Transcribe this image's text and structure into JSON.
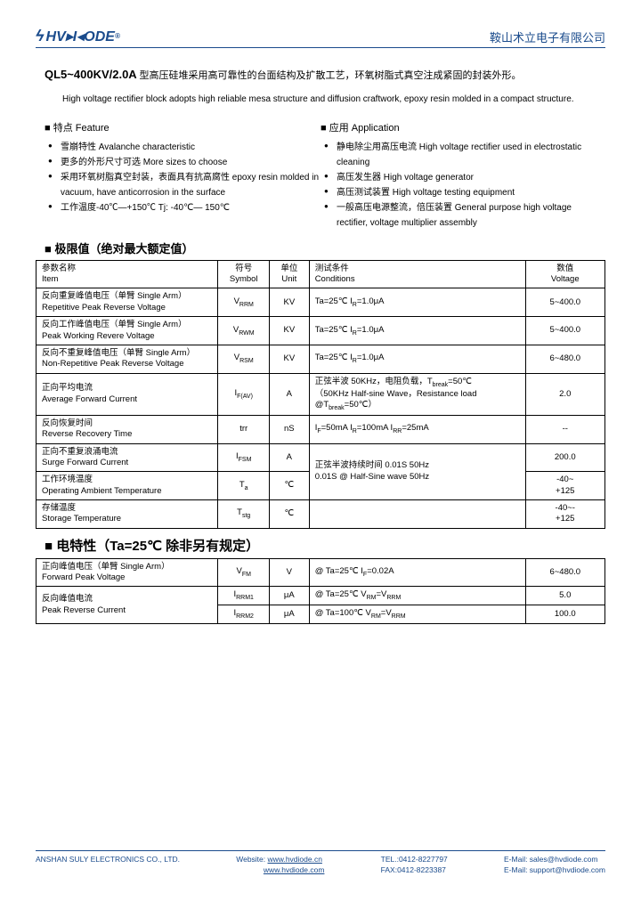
{
  "header": {
    "logo_text": "HV▸I◂ODE",
    "logo_sup": "®",
    "company_cn": "鞍山术立电子有限公司"
  },
  "title": {
    "part_no": "QL5~400KV/2.0A",
    "desc_cn": "型高压硅堆采用高可靠性的台面结构及扩散工艺，环氧树脂式真空注成紧固的封装外形。",
    "desc_en": "High voltage rectifier block adopts high reliable mesa structure and diffusion craftwork, epoxy resin molded in a compact structure."
  },
  "features": {
    "title": "■ 特点 Feature",
    "items": [
      "雪崩特性  Avalanche characteristic",
      "更多的外形尺寸可选  More sizes to choose",
      "采用环氧树脂真空封装，表面具有抗高腐性 epoxy resin molded in vacuum, have anticorrosion in the surface",
      "工作温度-40℃—+150℃   Tj: -40℃— 150℃"
    ]
  },
  "applications": {
    "title": "■ 应用 Application",
    "items": [
      "静电除尘用高压电流 High voltage rectifier used in electrostatic cleaning",
      "高压发生器   High voltage generator",
      "高压测试装置 High voltage testing equipment",
      "一般高压电源整流，倍压装置 General purpose high voltage rectifier, voltage multiplier assembly"
    ]
  },
  "limits": {
    "title": "■  极限值（绝对最大额定值）",
    "headers": {
      "item": "参数名称\nItem",
      "symbol": "符号\nSymbol",
      "unit": "单位\nUnit",
      "conditions": "测试条件\nConditions",
      "value": "数值\nVoltage"
    },
    "rows": [
      {
        "item": "反向重复峰值电压（单臂 Single Arm）\nRepetitive Peak Reverse Voltage",
        "sym": "V",
        "sub": "RRM",
        "unit": "KV",
        "cond": "Ta=25℃      I",
        "csub": "R",
        "cond2": "=1.0μA",
        "val": "5~400.0"
      },
      {
        "item": "反向工作峰值电压（单臂 Single Arm）\nPeak Working Revere Voltage",
        "sym": "V",
        "sub": "RWM",
        "unit": "KV",
        "cond": "Ta=25℃      I",
        "csub": "R",
        "cond2": "=1.0μA",
        "val": "5~400.0"
      },
      {
        "item": "反向不重复峰值电压（单臂 Single Arm）\nNon-Repetitive Peak Reverse Voltage",
        "sym": "V",
        "sub": "RSM",
        "unit": "KV",
        "cond": "Ta=25℃      I",
        "csub": "R",
        "cond2": "=1.0μA",
        "val": "6~480.0"
      },
      {
        "item": "正向平均电流\nAverage Forward Current",
        "sym": "I",
        "sub": "F(AV)",
        "unit": "A",
        "cond": "正弦半波 50KHz，电阻负载，T",
        "csub": "break",
        "cond2": "=50℃\n（50KHz Half-sine Wave，Resistance load @T",
        "csub2": "break",
        "cond3": "=50℃）",
        "val": "2.0"
      },
      {
        "item": "反向恢复时间\nReverse Recovery Time",
        "sym": "trr",
        "sub": "",
        "unit": "nS",
        "cond": "I",
        "csub": "F",
        "cond2": "=50mA   I",
        "csub2": "R",
        "cond3": "=100mA   I",
        "csub3": "RR",
        "cond4": "=25mA",
        "val": "--"
      },
      {
        "item": "正向不重复浪涌电流\nSurge Forward Current",
        "sym": "I",
        "sub": "FSM",
        "unit": "A",
        "cond": "正弦半波持续时间 0.01S    50Hz\n0.01S @ Half-Sine wave    50Hz",
        "val": "200.0",
        "rowspan": 2
      },
      {
        "item": "工作环境温度\nOperating Ambient Temperature",
        "sym": "T",
        "sub": "a",
        "unit": "℃",
        "val": "-40~\n+125"
      },
      {
        "item": "存储温度\nStorage Temperature",
        "sym": "T",
        "sub": "stg",
        "unit": "℃",
        "cond": "",
        "val": "-40~-\n+125"
      }
    ]
  },
  "elec": {
    "title": "■  电特性（Ta=25℃ 除非另有规定）",
    "rows": [
      {
        "item": "正向峰值电压（单臂 Single Arm）\nForward Peak Voltage",
        "sym": "V",
        "sub": "FM",
        "unit": "V",
        "cond": "@ Ta=25℃  I",
        "csub": "F",
        "cond2": "=0.02A",
        "val": "6~480.0"
      },
      {
        "item": "反向峰值电流\nPeak Reverse Current",
        "sym": "I",
        "sub": "RRM1",
        "unit": "μA",
        "cond": "@ Ta=25℃ V",
        "csub": "RM",
        "cond2": "=V",
        "csub2": "RRM",
        "val": "5.0",
        "rowspan": 2
      },
      {
        "sym": "I",
        "sub": "RRM2",
        "unit": "μA",
        "cond": "@ Ta=100℃ V",
        "csub": "RM",
        "cond2": "=V",
        "csub2": "RRM",
        "val": "100.0"
      }
    ]
  },
  "footer": {
    "company": "ANSHAN SULY ELECTRONICS CO., LTD.",
    "website_label": "Website:",
    "website1": "www.hvdiode.cn",
    "website2": "www.hvdiode.com",
    "tel": "TEL.:0412-8227797",
    "fax": "FAX:0412-8223387",
    "email1": "E-Mail: sales@hvdiode.com",
    "email2": "E-Mail: support@hvdiode.com"
  }
}
